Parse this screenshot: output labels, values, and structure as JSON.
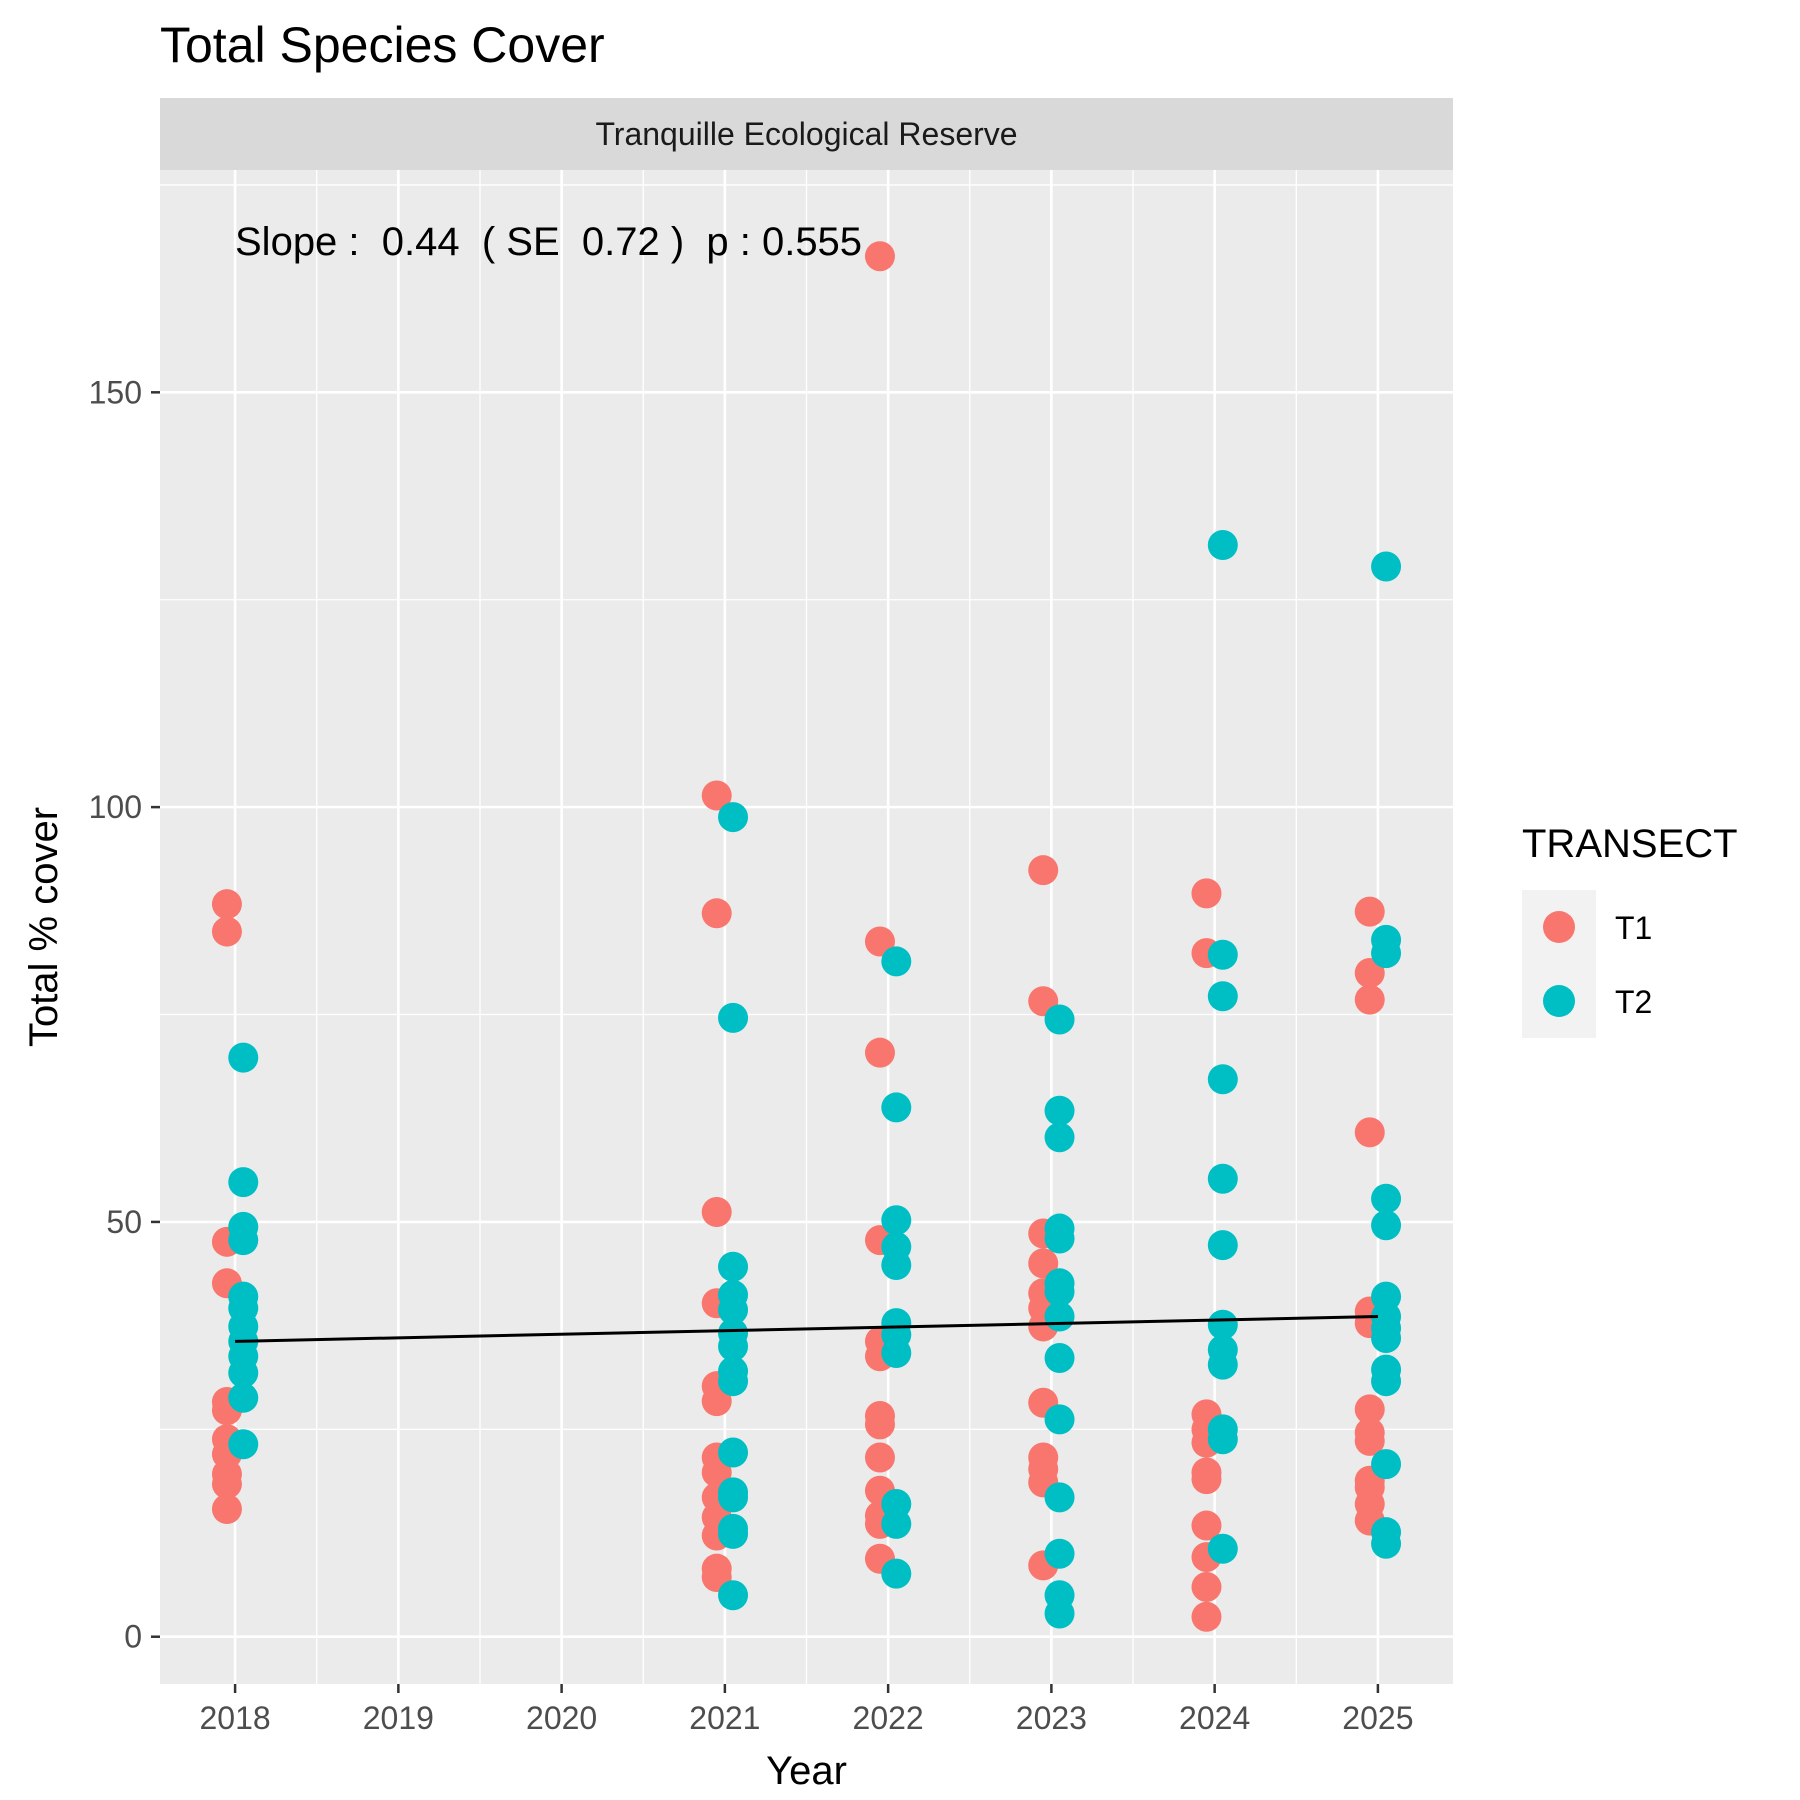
{
  "chart_data": {
    "type": "scatter",
    "title": "Total Species Cover",
    "facet_label": "Tranquille Ecological Reserve",
    "xlabel": "Year",
    "ylabel": "Total % cover",
    "x_ticks": [
      "2018",
      "2019",
      "2020",
      "2021",
      "2022",
      "2023",
      "2024",
      "2025"
    ],
    "y_ticks": [
      "0",
      "50",
      "100",
      "150"
    ],
    "xlim": [
      2017.54,
      2025.46
    ],
    "ylim": [
      -5.7,
      176.8
    ],
    "annotation": "Slope :  0.44  ( SE  0.72 )  p : 0.555",
    "legend": {
      "title": "TRANSECT",
      "position": "right"
    },
    "grid": true,
    "series": [
      {
        "name": "T1",
        "color": "#F8766D",
        "points": [
          {
            "x": 2018,
            "y": 88.3
          },
          {
            "x": 2018,
            "y": 85.0
          },
          {
            "x": 2018,
            "y": 47.6
          },
          {
            "x": 2018,
            "y": 42.6
          },
          {
            "x": 2018,
            "y": 28.3
          },
          {
            "x": 2018,
            "y": 27.3
          },
          {
            "x": 2018,
            "y": 23.8
          },
          {
            "x": 2018,
            "y": 22.0
          },
          {
            "x": 2018,
            "y": 19.6
          },
          {
            "x": 2018,
            "y": 18.4
          },
          {
            "x": 2018,
            "y": 15.4
          },
          {
            "x": 2021,
            "y": 101.4
          },
          {
            "x": 2021,
            "y": 87.2
          },
          {
            "x": 2021,
            "y": 51.2
          },
          {
            "x": 2021,
            "y": 40.2
          },
          {
            "x": 2021,
            "y": 30.2
          },
          {
            "x": 2021,
            "y": 28.4
          },
          {
            "x": 2021,
            "y": 21.6
          },
          {
            "x": 2021,
            "y": 19.8
          },
          {
            "x": 2021,
            "y": 16.8
          },
          {
            "x": 2021,
            "y": 14.4
          },
          {
            "x": 2021,
            "y": 12.2
          },
          {
            "x": 2021,
            "y": 8.2
          },
          {
            "x": 2021,
            "y": 7.2
          },
          {
            "x": 2022,
            "y": 166.4
          },
          {
            "x": 2022,
            "y": 83.8
          },
          {
            "x": 2022,
            "y": 70.4
          },
          {
            "x": 2022,
            "y": 47.8
          },
          {
            "x": 2022,
            "y": 35.6
          },
          {
            "x": 2022,
            "y": 33.8
          },
          {
            "x": 2022,
            "y": 26.6
          },
          {
            "x": 2022,
            "y": 25.6
          },
          {
            "x": 2022,
            "y": 21.6
          },
          {
            "x": 2022,
            "y": 17.6
          },
          {
            "x": 2022,
            "y": 14.6
          },
          {
            "x": 2022,
            "y": 13.6
          },
          {
            "x": 2022,
            "y": 9.4
          },
          {
            "x": 2023,
            "y": 92.4
          },
          {
            "x": 2023,
            "y": 76.6
          },
          {
            "x": 2023,
            "y": 48.6
          },
          {
            "x": 2023,
            "y": 45.0
          },
          {
            "x": 2023,
            "y": 41.4
          },
          {
            "x": 2023,
            "y": 39.6
          },
          {
            "x": 2023,
            "y": 37.4
          },
          {
            "x": 2023,
            "y": 28.2
          },
          {
            "x": 2023,
            "y": 21.6
          },
          {
            "x": 2023,
            "y": 20.2
          },
          {
            "x": 2023,
            "y": 18.6
          },
          {
            "x": 2023,
            "y": 8.6
          },
          {
            "x": 2024,
            "y": 89.6
          },
          {
            "x": 2024,
            "y": 82.4
          },
          {
            "x": 2024,
            "y": 26.8
          },
          {
            "x": 2024,
            "y": 25.0
          },
          {
            "x": 2024,
            "y": 23.4
          },
          {
            "x": 2024,
            "y": 19.8
          },
          {
            "x": 2024,
            "y": 19.0
          },
          {
            "x": 2024,
            "y": 13.4
          },
          {
            "x": 2024,
            "y": 9.6
          },
          {
            "x": 2024,
            "y": 6.0
          },
          {
            "x": 2024,
            "y": 2.4
          },
          {
            "x": 2025,
            "y": 87.4
          },
          {
            "x": 2025,
            "y": 80.0
          },
          {
            "x": 2025,
            "y": 76.8
          },
          {
            "x": 2025,
            "y": 60.8
          },
          {
            "x": 2025,
            "y": 39.2
          },
          {
            "x": 2025,
            "y": 37.8
          },
          {
            "x": 2025,
            "y": 27.4
          },
          {
            "x": 2025,
            "y": 24.6
          },
          {
            "x": 2025,
            "y": 23.6
          },
          {
            "x": 2025,
            "y": 18.8
          },
          {
            "x": 2025,
            "y": 18.0
          },
          {
            "x": 2025,
            "y": 16.0
          },
          {
            "x": 2025,
            "y": 14.0
          }
        ]
      },
      {
        "name": "T2",
        "color": "#00BFC4",
        "points": [
          {
            "x": 2018,
            "y": 69.8
          },
          {
            "x": 2018,
            "y": 54.8
          },
          {
            "x": 2018,
            "y": 49.4
          },
          {
            "x": 2018,
            "y": 47.8
          },
          {
            "x": 2018,
            "y": 41.0
          },
          {
            "x": 2018,
            "y": 39.6
          },
          {
            "x": 2018,
            "y": 37.4
          },
          {
            "x": 2018,
            "y": 35.6
          },
          {
            "x": 2018,
            "y": 33.8
          },
          {
            "x": 2018,
            "y": 31.8
          },
          {
            "x": 2018,
            "y": 28.8
          },
          {
            "x": 2018,
            "y": 23.2
          },
          {
            "x": 2021,
            "y": 98.8
          },
          {
            "x": 2021,
            "y": 74.6
          },
          {
            "x": 2021,
            "y": 44.6
          },
          {
            "x": 2021,
            "y": 41.2
          },
          {
            "x": 2021,
            "y": 39.4
          },
          {
            "x": 2021,
            "y": 36.6
          },
          {
            "x": 2021,
            "y": 35.0
          },
          {
            "x": 2021,
            "y": 32.0
          },
          {
            "x": 2021,
            "y": 30.8
          },
          {
            "x": 2021,
            "y": 22.2
          },
          {
            "x": 2021,
            "y": 17.4
          },
          {
            "x": 2021,
            "y": 16.8
          },
          {
            "x": 2021,
            "y": 13.0
          },
          {
            "x": 2021,
            "y": 12.4
          },
          {
            "x": 2021,
            "y": 5.0
          },
          {
            "x": 2022,
            "y": 81.4
          },
          {
            "x": 2022,
            "y": 63.8
          },
          {
            "x": 2022,
            "y": 50.2
          },
          {
            "x": 2022,
            "y": 47.0
          },
          {
            "x": 2022,
            "y": 44.8
          },
          {
            "x": 2022,
            "y": 37.8
          },
          {
            "x": 2022,
            "y": 36.4
          },
          {
            "x": 2022,
            "y": 34.2
          },
          {
            "x": 2022,
            "y": 16.0
          },
          {
            "x": 2022,
            "y": 13.6
          },
          {
            "x": 2022,
            "y": 7.6
          },
          {
            "x": 2023,
            "y": 74.4
          },
          {
            "x": 2023,
            "y": 63.4
          },
          {
            "x": 2023,
            "y": 60.2
          },
          {
            "x": 2023,
            "y": 49.2
          },
          {
            "x": 2023,
            "y": 48.0
          },
          {
            "x": 2023,
            "y": 42.6
          },
          {
            "x": 2023,
            "y": 41.6
          },
          {
            "x": 2023,
            "y": 38.6
          },
          {
            "x": 2023,
            "y": 33.6
          },
          {
            "x": 2023,
            "y": 26.2
          },
          {
            "x": 2023,
            "y": 16.8
          },
          {
            "x": 2023,
            "y": 10.0
          },
          {
            "x": 2023,
            "y": 5.0
          },
          {
            "x": 2023,
            "y": 2.8
          },
          {
            "x": 2024,
            "y": 131.6
          },
          {
            "x": 2024,
            "y": 82.2
          },
          {
            "x": 2024,
            "y": 77.2
          },
          {
            "x": 2024,
            "y": 67.2
          },
          {
            "x": 2024,
            "y": 55.2
          },
          {
            "x": 2024,
            "y": 47.2
          },
          {
            "x": 2024,
            "y": 37.6
          },
          {
            "x": 2024,
            "y": 34.6
          },
          {
            "x": 2024,
            "y": 32.8
          },
          {
            "x": 2024,
            "y": 25.0
          },
          {
            "x": 2024,
            "y": 23.8
          },
          {
            "x": 2024,
            "y": 10.6
          },
          {
            "x": 2025,
            "y": 129.0
          },
          {
            "x": 2025,
            "y": 84.0
          },
          {
            "x": 2025,
            "y": 82.4
          },
          {
            "x": 2025,
            "y": 52.8
          },
          {
            "x": 2025,
            "y": 49.6
          },
          {
            "x": 2025,
            "y": 41.0
          },
          {
            "x": 2025,
            "y": 38.6
          },
          {
            "x": 2025,
            "y": 37.2
          },
          {
            "x": 2025,
            "y": 36.0
          },
          {
            "x": 2025,
            "y": 32.2
          },
          {
            "x": 2025,
            "y": 30.8
          },
          {
            "x": 2025,
            "y": 20.8
          },
          {
            "x": 2025,
            "y": 12.6
          },
          {
            "x": 2025,
            "y": 11.2
          }
        ]
      }
    ],
    "trend_line": {
      "x": [
        2018,
        2025
      ],
      "y": [
        35.6,
        38.6
      ],
      "color": "#000000"
    }
  }
}
